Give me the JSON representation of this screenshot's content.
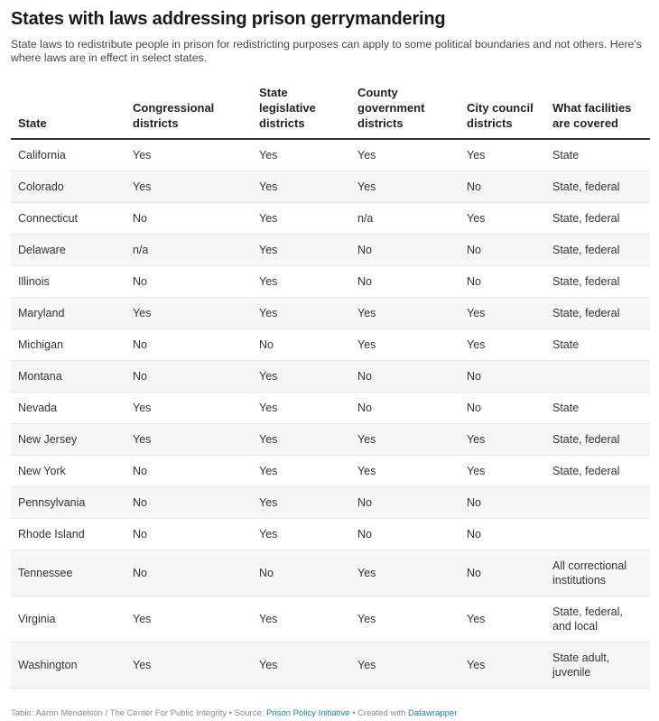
{
  "title": "States with laws addressing prison gerrymandering",
  "subtitle": "State laws to redistribute people in prison for redistricting purposes can apply to some political boundaries and not others. Here's where laws are in effect in select states.",
  "columns": [
    "State",
    "Congressional districts",
    "State legislative districts",
    "County government districts",
    "City council districts",
    "What facilities are covered"
  ],
  "rows": [
    [
      "California",
      "Yes",
      "Yes",
      "Yes",
      "Yes",
      "State"
    ],
    [
      "Colorado",
      "Yes",
      "Yes",
      "Yes",
      "No",
      "State, federal"
    ],
    [
      "Connecticut",
      "No",
      "Yes",
      "n/a",
      "Yes",
      "State, federal"
    ],
    [
      "Delaware",
      "n/a",
      "Yes",
      "No",
      "No",
      "State, federal"
    ],
    [
      "Illinois",
      "No",
      "Yes",
      "No",
      "No",
      "State, federal"
    ],
    [
      "Maryland",
      "Yes",
      "Yes",
      "Yes",
      "Yes",
      "State, federal"
    ],
    [
      "Michigan",
      "No",
      "No",
      "Yes",
      "Yes",
      "State"
    ],
    [
      "Montana",
      "No",
      "Yes",
      "No",
      "No",
      ""
    ],
    [
      "Nevada",
      "Yes",
      "Yes",
      "No",
      "No",
      "State"
    ],
    [
      "New Jersey",
      "Yes",
      "Yes",
      "Yes",
      "Yes",
      "State, federal"
    ],
    [
      "New York",
      "No",
      "Yes",
      "Yes",
      "Yes",
      "State, federal"
    ],
    [
      "Pennsylvania",
      "No",
      "Yes",
      "No",
      "No",
      ""
    ],
    [
      "Rhode Island",
      "No",
      "Yes",
      "No",
      "No",
      ""
    ],
    [
      "Tennessee",
      "No",
      "No",
      "Yes",
      "No",
      "All correctional institutions"
    ],
    [
      "Virginia",
      "Yes",
      "Yes",
      "Yes",
      "Yes",
      "State, federal, and local"
    ],
    [
      "Washington",
      "Yes",
      "Yes",
      "Yes",
      "Yes",
      "State adult, juvenile"
    ]
  ],
  "footer": {
    "credit": "Table: Aaron Mendelson / The Center For Public Integrity • Source: ",
    "source_link": "Prison Policy Initiative",
    "created": " • Created with ",
    "tool_link": "Datawrapper"
  }
}
